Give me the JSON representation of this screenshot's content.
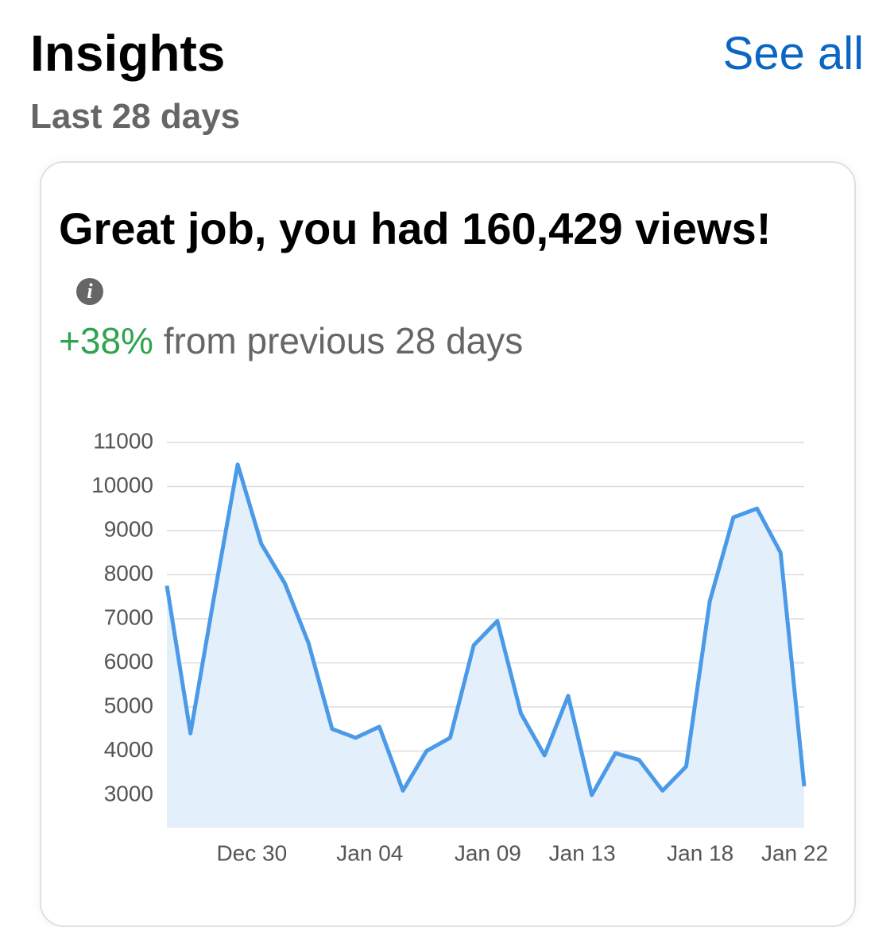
{
  "header": {
    "title": "Insights",
    "link": "See all",
    "subtitle": "Last 28 days"
  },
  "card": {
    "headline": "Great job, you had 160,429 views!",
    "change": "+38%",
    "change_text": "from previous 28 days"
  },
  "chart_data": {
    "type": "line",
    "categories": [
      null,
      null,
      null,
      null,
      "Dec 30",
      null,
      null,
      null,
      null,
      "Jan 04",
      null,
      null,
      null,
      null,
      "Jan 09",
      null,
      null,
      null,
      "Jan 13",
      null,
      null,
      null,
      null,
      "Jan 18",
      null,
      null,
      null,
      "Jan 22"
    ],
    "values": [
      7750,
      4400,
      7500,
      10500,
      8700,
      7800,
      6450,
      4500,
      4300,
      4550,
      3100,
      4000,
      4300,
      6400,
      6950,
      4850,
      3900,
      5250,
      3000,
      3950,
      3800,
      3100,
      3650,
      7400,
      9300,
      9500,
      8500,
      3200
    ],
    "color": "#4a9ae8",
    "area_color": "#e4effc",
    "ylim": [
      2260,
      11000
    ],
    "yticks": [
      3000,
      4000,
      5000,
      6000,
      7000,
      8000,
      9000,
      10000,
      11000
    ],
    "grid": true
  }
}
